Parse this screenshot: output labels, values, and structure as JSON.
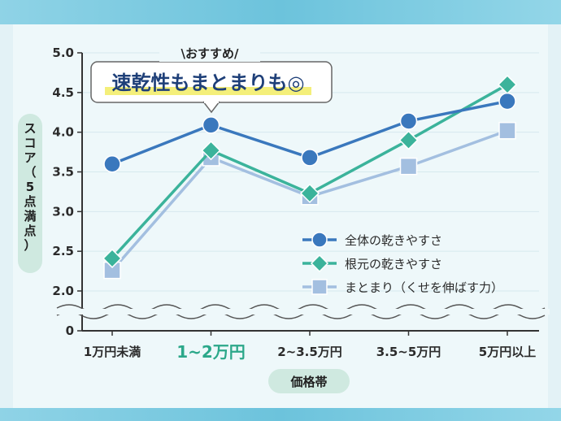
{
  "chart_data": {
    "type": "line",
    "categories": [
      "1万円未満",
      "1~2万円",
      "2~3.5万円",
      "3.5~5万円",
      "5万円以上"
    ],
    "highlight_category": "1~2万円",
    "series": [
      {
        "name": "全体の乾きやすさ",
        "values": [
          3.6,
          4.09,
          3.68,
          4.14,
          4.39
        ],
        "color": "#3a78bd",
        "marker": "circle"
      },
      {
        "name": "根元の乾きやすさ",
        "values": [
          2.41,
          3.77,
          3.23,
          3.9,
          4.6
        ],
        "color": "#3bb39b",
        "marker": "diamond"
      },
      {
        "name": "まとまり（くせを伸ばす力）",
        "values": [
          2.26,
          3.68,
          3.19,
          3.57,
          4.02
        ],
        "color": "#a3bfe0",
        "marker": "square"
      }
    ],
    "y_ticks": [
      "5.0",
      "4.5",
      "4.0",
      "3.5",
      "3.0",
      "2.5",
      "2.0",
      "0"
    ],
    "ylim": [
      2.0,
      5.0
    ],
    "ylabel": "スコア（5点満点）",
    "xlabel": "価格帯",
    "axis_break": true,
    "legend_position": "bottom-right",
    "callout": {
      "small": "\\おすすめ/",
      "big": "速乾性もまとまりも◎"
    }
  }
}
